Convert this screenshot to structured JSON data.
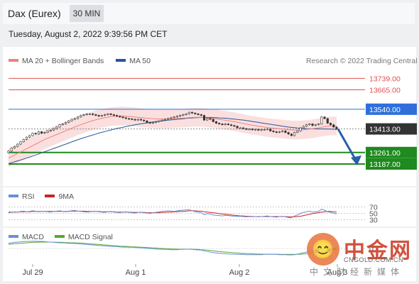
{
  "header": {
    "title": "Dax (Eurex)",
    "interval": "30 MIN"
  },
  "datetime": "Tuesday, August 2, 2022 9:39:56 PM CET",
  "legend": {
    "ma20": "MA 20 + Bollinger Bands",
    "ma50": "MA 50",
    "rsi": "RSI",
    "rsi_ma": "9MA",
    "macd": "MACD",
    "macd_signal": "MACD Signal"
  },
  "credit": "Research © 2022 Trading Central",
  "colors": {
    "resistance": "#e05050",
    "pivot": "#2f6fdb",
    "support": "#1f8a1f",
    "current": "#333333",
    "ma20": "#f08080",
    "ma50": "#2a5599",
    "bands": "#f7c9c9",
    "rsi": "#6a8fd8",
    "rsi_ma": "#cc2222",
    "macd": "#6a8fd8",
    "macd_signal": "#55a833",
    "arrow": "#2a5fa8"
  },
  "watermark": {
    "glyph": "😊",
    "name": "中金网",
    "url": "CNGOLD.COM.CN",
    "sub": "中文财经新媒体"
  },
  "chart_data": {
    "type": "candlestick",
    "x_ticks": [
      "Jul 29",
      "Aug 1",
      "Aug 2",
      "Aug 3"
    ],
    "price_ylim": [
      13100,
      13800
    ],
    "levels": [
      {
        "name": "resistance-2",
        "value": 13739.0,
        "label": "13739.00",
        "kind": "resistance"
      },
      {
        "name": "resistance-1",
        "value": 13665.0,
        "label": "13665.00",
        "kind": "resistance"
      },
      {
        "name": "pivot",
        "value": 13540.0,
        "label": "13540.00",
        "kind": "pivot"
      },
      {
        "name": "current",
        "value": 13413.0,
        "label": "13413.00",
        "kind": "current"
      },
      {
        "name": "support-1",
        "value": 13261.0,
        "label": "13261.00",
        "kind": "support"
      },
      {
        "name": "support-2",
        "value": 13187.0,
        "label": "13187.00",
        "kind": "support"
      }
    ],
    "close": [
      13270,
      13290,
      13300,
      13315,
      13330,
      13345,
      13360,
      13370,
      13385,
      13380,
      13395,
      13385,
      13390,
      13400,
      13405,
      13415,
      13425,
      13440,
      13445,
      13455,
      13465,
      13475,
      13480,
      13490,
      13500,
      13505,
      13510,
      13510,
      13505,
      13500,
      13495,
      13500,
      13505,
      13510,
      13505,
      13500,
      13495,
      13490,
      13485,
      13480,
      13478,
      13475,
      13470,
      13475,
      13470,
      13465,
      13455,
      13450,
      13455,
      13460,
      13465,
      13470,
      13475,
      13480,
      13485,
      13490,
      13495,
      13500,
      13505,
      13510,
      13520,
      13515,
      13510,
      13505,
      13500,
      13470,
      13480,
      13475,
      13460,
      13450,
      13445,
      13440,
      13445,
      13440,
      13435,
      13430,
      13420,
      13420,
      13415,
      13410,
      13412,
      13408,
      13410,
      13405,
      13408,
      13410,
      13412,
      13400,
      13395,
      13390,
      13395,
      13400,
      13390,
      13380,
      13370,
      13390,
      13400,
      13420,
      13430,
      13440,
      13445,
      13435,
      13440,
      13445,
      13490,
      13480,
      13450,
      13440,
      13425,
      13413
    ],
    "ma20": [
      13225,
      13235,
      13245,
      13255,
      13265,
      13275,
      13285,
      13295,
      13305,
      13315,
      13325,
      13335,
      13345,
      13353,
      13361,
      13369,
      13377,
      13385,
      13393,
      13401,
      13409,
      13417,
      13425,
      13433,
      13440,
      13447,
      13454,
      13460,
      13466,
      13472,
      13477,
      13481,
      13485,
      13489,
      13492,
      13494,
      13495,
      13496,
      13496,
      13495,
      13494,
      13492,
      13490,
      13488,
      13486,
      13484,
      13482,
      13480,
      13479,
      13478,
      13477,
      13477,
      13477,
      13478,
      13479,
      13480,
      13481,
      13482,
      13483,
      13484,
      13486,
      13487,
      13488,
      13488,
      13488,
      13486,
      13484,
      13482,
      13480,
      13478,
      13475,
      13472,
      13469,
      13466,
      13463,
      13460,
      13456,
      13452,
      13448,
      13444,
      13440,
      13437,
      13434,
      13431,
      13428,
      13425,
      13422,
      13420,
      13418,
      13416,
      13414,
      13412,
      13410,
      13408,
      13406,
      13406,
      13406,
      13407,
      13408,
      13410,
      13412,
      13414,
      13417,
      13420,
      13424,
      13428,
      13430,
      13432,
      13432,
      13431
    ],
    "ma50": [
      13190,
      13195,
      13201,
      13207,
      13213,
      13219,
      13225,
      13231,
      13238,
      13245,
      13252,
      13259,
      13266,
      13273,
      13280,
      13287,
      13294,
      13301,
      13308,
      13315,
      13322,
      13329,
      13336,
      13343,
      13350,
      13356,
      13362,
      13368,
      13374,
      13380,
      13386,
      13391,
      13396,
      13401,
      13406,
      13411,
      13416,
      13420,
      13424,
      13428,
      13432,
      13436,
      13440,
      13443,
      13446,
      13449,
      13452,
      13455,
      13458,
      13461,
      13463,
      13465,
      13467,
      13469,
      13471,
      13473,
      13475,
      13477,
      13479,
      13481,
      13483,
      13484,
      13485,
      13486,
      13487,
      13487,
      13487,
      13487,
      13486,
      13485,
      13484,
      13483,
      13482,
      13480,
      13478,
      13476,
      13474,
      13472,
      13470,
      13467,
      13464,
      13461,
      13458,
      13455,
      13452,
      13449,
      13446,
      13443,
      13440,
      13437,
      13434,
      13431,
      13428,
      13425,
      13423,
      13421,
      13419,
      13417,
      13416,
      13415,
      13414,
      13414,
      13413,
      13413,
      13413,
      13413,
      13412,
      13412,
      13411,
      13410
    ],
    "band_width": 60,
    "rsi_ylim": [
      20,
      80
    ],
    "rsi_levels": [
      70,
      50,
      30
    ],
    "rsi_level_labels": [
      "70",
      "50",
      "30"
    ],
    "rsi": [
      52,
      53,
      55,
      54,
      56,
      57,
      55,
      56,
      58,
      57,
      55,
      56,
      57,
      55,
      54,
      56,
      57,
      58,
      56,
      55,
      57,
      58,
      59,
      57,
      56,
      55,
      54,
      55,
      56,
      57,
      55,
      54,
      53,
      55,
      56,
      54,
      53,
      52,
      54,
      55,
      53,
      52,
      51,
      53,
      54,
      52,
      51,
      50,
      52,
      53,
      55,
      56,
      57,
      58,
      57,
      56,
      58,
      59,
      60,
      61,
      62,
      58,
      55,
      54,
      52,
      46,
      49,
      48,
      45,
      44,
      43,
      42,
      44,
      43,
      42,
      41,
      40,
      41,
      40,
      39,
      40,
      39,
      40,
      39,
      40,
      41,
      42,
      40,
      39,
      38,
      40,
      41,
      39,
      37,
      36,
      42,
      45,
      50,
      53,
      55,
      57,
      54,
      55,
      56,
      63,
      60,
      55,
      53,
      50,
      48
    ],
    "rsi_ma": [
      54,
      54,
      54,
      54,
      55,
      55,
      55,
      55,
      56,
      56,
      56,
      56,
      56,
      56,
      56,
      56,
      56,
      56,
      56,
      56,
      56,
      57,
      57,
      57,
      57,
      57,
      56,
      56,
      56,
      56,
      56,
      55,
      55,
      55,
      55,
      55,
      54,
      54,
      54,
      54,
      54,
      53,
      53,
      53,
      53,
      53,
      52,
      52,
      52,
      52,
      52,
      53,
      53,
      54,
      54,
      55,
      55,
      56,
      56,
      57,
      58,
      58,
      58,
      57,
      57,
      55,
      54,
      53,
      52,
      51,
      49,
      48,
      47,
      46,
      45,
      44,
      43,
      42,
      42,
      41,
      41,
      40,
      40,
      40,
      40,
      40,
      40,
      40,
      40,
      40,
      40,
      40,
      40,
      39,
      39,
      39,
      40,
      41,
      43,
      45,
      47,
      49,
      51,
      52,
      54,
      55,
      56,
      56,
      55,
      54
    ],
    "macd_ylim": [
      -60,
      60
    ],
    "macd": [
      22,
      24,
      26,
      27,
      28,
      29,
      30,
      30,
      31,
      31,
      30,
      30,
      29,
      28,
      27,
      26,
      25,
      24,
      24,
      23,
      22,
      22,
      21,
      20,
      19,
      18,
      17,
      16,
      15,
      14,
      13,
      12,
      11,
      10,
      9,
      8,
      8,
      7,
      6,
      6,
      5,
      5,
      4,
      4,
      3,
      2,
      1,
      0,
      -1,
      -2,
      -3,
      -3,
      -4,
      -4,
      -5,
      -5,
      -5,
      -4,
      -4,
      -3,
      -3,
      -4,
      -5,
      -6,
      -7,
      -10,
      -13,
      -15,
      -17,
      -19,
      -20,
      -21,
      -22,
      -23,
      -24,
      -24,
      -25,
      -25,
      -25,
      -26,
      -26,
      -26,
      -26,
      -26,
      -26,
      -25,
      -25,
      -25,
      -25,
      -25,
      -26,
      -26,
      -26,
      -27,
      -27,
      -26,
      -24,
      -21,
      -18,
      -15,
      -12,
      -10,
      -8,
      -6,
      -2,
      0,
      1,
      1,
      0,
      -1
    ],
    "macd_signal": [
      18,
      19,
      20,
      21,
      22,
      23,
      24,
      25,
      26,
      26,
      27,
      27,
      27,
      27,
      27,
      27,
      26,
      26,
      26,
      25,
      25,
      24,
      24,
      23,
      23,
      22,
      21,
      20,
      19,
      18,
      17,
      16,
      15,
      14,
      13,
      12,
      11,
      10,
      9,
      9,
      8,
      7,
      7,
      6,
      5,
      5,
      4,
      3,
      2,
      2,
      1,
      0,
      -1,
      -1,
      -2,
      -2,
      -3,
      -3,
      -3,
      -3,
      -3,
      -3,
      -4,
      -4,
      -5,
      -6,
      -7,
      -8,
      -10,
      -11,
      -13,
      -14,
      -15,
      -16,
      -17,
      -18,
      -19,
      -20,
      -21,
      -21,
      -22,
      -22,
      -23,
      -23,
      -24,
      -24,
      -24,
      -24,
      -24,
      -24,
      -25,
      -25,
      -25,
      -25,
      -25,
      -25,
      -25,
      -24,
      -23,
      -22,
      -20,
      -18,
      -16,
      -14,
      -12,
      -10,
      -8,
      -6,
      -4,
      -3
    ]
  }
}
